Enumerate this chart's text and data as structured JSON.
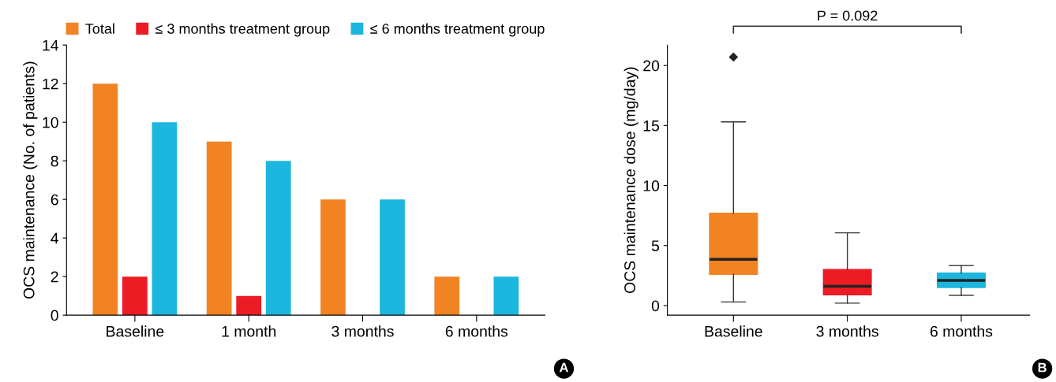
{
  "chart_data": [
    {
      "type": "bar",
      "ylabel": "OCS maintenance (No. of patients)",
      "categories": [
        "Baseline",
        "1 month",
        "3 months",
        "6 months"
      ],
      "series": [
        {
          "name": "Total",
          "color": "#f28322",
          "values": [
            12,
            9,
            6,
            2
          ]
        },
        {
          "name": "≤ 3 months treatment group",
          "color": "#ed1c24",
          "values": [
            2,
            1,
            0,
            0
          ]
        },
        {
          "name": "≤ 6 months treatment group",
          "color": "#1cb6de",
          "values": [
            10,
            8,
            6,
            2
          ]
        }
      ],
      "ylim": [
        0,
        14
      ],
      "yticks": [
        0,
        2,
        4,
        6,
        8,
        10,
        12,
        14
      ],
      "legend": "top",
      "grid": false,
      "annotations": [
        "A"
      ]
    },
    {
      "type": "box",
      "ylabel": "OCS maintenance dose (mg/day)",
      "categories": [
        "Baseline",
        "3 months",
        "6 months"
      ],
      "colors": [
        "#f28322",
        "#ed1c24",
        "#1cb6de"
      ],
      "boxes": [
        {
          "low": 0.3,
          "q1": 2.6,
          "median": 3.85,
          "q3": 7.7,
          "high": 15.3,
          "outliers": [
            20.7
          ]
        },
        {
          "low": 0.2,
          "q1": 0.9,
          "median": 1.6,
          "q3": 3.0,
          "high": 6.06
        },
        {
          "low": 0.85,
          "q1": 1.5,
          "median": 2.1,
          "q3": 2.7,
          "high": 3.33
        }
      ],
      "ylim": [
        -0.8,
        21.7
      ],
      "yticks": [
        0,
        5,
        10,
        15,
        20
      ],
      "grid": false,
      "annotations": [
        "P = 0.092",
        "B"
      ]
    }
  ]
}
